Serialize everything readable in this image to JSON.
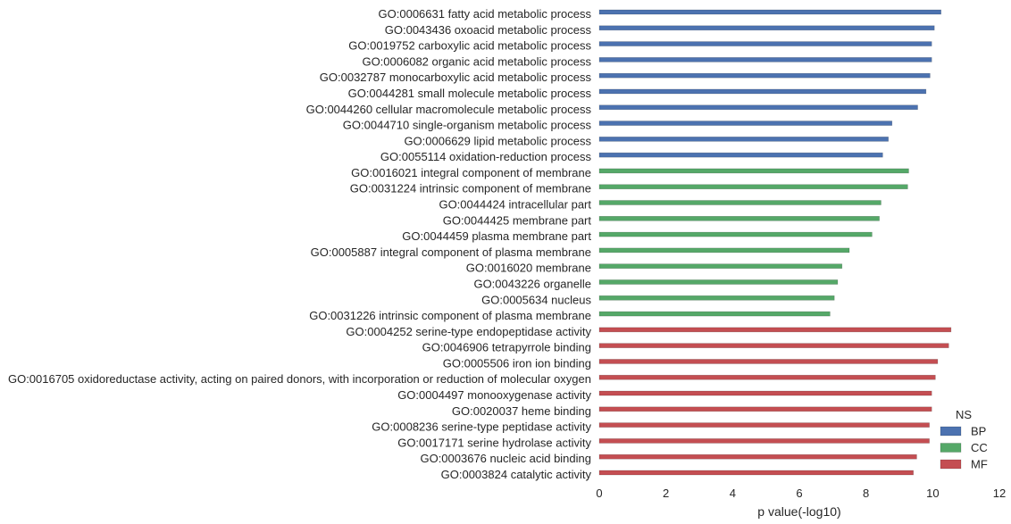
{
  "chart_data": {
    "type": "bar",
    "orientation": "horizontal",
    "title": "",
    "xlabel": "p value(-log10)",
    "ylabel": "",
    "xlim": [
      0,
      12
    ],
    "xticks": [
      "0",
      "2",
      "4",
      "6",
      "8",
      "10",
      "12"
    ],
    "grid": false,
    "legend": {
      "title": "NS",
      "position": "bottom-right",
      "entries": [
        {
          "name": "BP",
          "color": "#4c72b0"
        },
        {
          "name": "CC",
          "color": "#55a868"
        },
        {
          "name": "MF",
          "color": "#c44e52"
        }
      ]
    },
    "categories": [
      {
        "label": "GO:0006631 fatty acid metabolic process",
        "value": 10.25,
        "group": "BP"
      },
      {
        "label": "GO:0043436 oxoacid metabolic process",
        "value": 10.05,
        "group": "BP"
      },
      {
        "label": "GO:0019752 carboxylic acid metabolic process",
        "value": 9.97,
        "group": "BP"
      },
      {
        "label": "GO:0006082 organic acid metabolic process",
        "value": 9.97,
        "group": "BP"
      },
      {
        "label": "GO:0032787 monocarboxylic acid metabolic process",
        "value": 9.92,
        "group": "BP"
      },
      {
        "label": "GO:0044281 small molecule metabolic process",
        "value": 9.8,
        "group": "BP"
      },
      {
        "label": "GO:0044260 cellular macromolecule metabolic process",
        "value": 9.55,
        "group": "BP"
      },
      {
        "label": "GO:0044710 single-organism metabolic process",
        "value": 8.78,
        "group": "BP"
      },
      {
        "label": "GO:0006629 lipid metabolic process",
        "value": 8.67,
        "group": "BP"
      },
      {
        "label": "GO:0055114 oxidation-reduction process",
        "value": 8.5,
        "group": "BP"
      },
      {
        "label": "GO:0016021 integral component of membrane",
        "value": 9.28,
        "group": "CC"
      },
      {
        "label": "GO:0031224 intrinsic component of membrane",
        "value": 9.25,
        "group": "CC"
      },
      {
        "label": "GO:0044424 intracellular part",
        "value": 8.45,
        "group": "CC"
      },
      {
        "label": "GO:0044425 membrane part",
        "value": 8.4,
        "group": "CC"
      },
      {
        "label": "GO:0044459 plasma membrane part",
        "value": 8.18,
        "group": "CC"
      },
      {
        "label": "GO:0005887 integral component of plasma membrane",
        "value": 7.5,
        "group": "CC"
      },
      {
        "label": "GO:0016020 membrane",
        "value": 7.28,
        "group": "CC"
      },
      {
        "label": "GO:0043226 organelle",
        "value": 7.15,
        "group": "CC"
      },
      {
        "label": "GO:0005634 nucleus",
        "value": 7.05,
        "group": "CC"
      },
      {
        "label": "GO:0031226 intrinsic component of plasma membrane",
        "value": 6.92,
        "group": "CC"
      },
      {
        "label": "GO:0004252 serine-type endopeptidase activity",
        "value": 10.55,
        "group": "MF"
      },
      {
        "label": "GO:0046906 tetrapyrrole binding",
        "value": 10.48,
        "group": "MF"
      },
      {
        "label": "GO:0005506 iron ion binding",
        "value": 10.15,
        "group": "MF"
      },
      {
        "label": "GO:0016705 oxidoreductase activity, acting on paired donors, with incorporation or reduction of molecular oxygen",
        "value": 10.08,
        "group": "MF"
      },
      {
        "label": "GO:0004497 monooxygenase activity",
        "value": 9.97,
        "group": "MF"
      },
      {
        "label": "GO:0020037 heme binding",
        "value": 9.97,
        "group": "MF"
      },
      {
        "label": "GO:0008236 serine-type peptidase activity",
        "value": 9.9,
        "group": "MF"
      },
      {
        "label": "GO:0017171 serine hydrolase activity",
        "value": 9.9,
        "group": "MF"
      },
      {
        "label": "GO:0003676 nucleic acid binding",
        "value": 9.52,
        "group": "MF"
      },
      {
        "label": "GO:0003824 catalytic activity",
        "value": 9.42,
        "group": "MF"
      }
    ]
  }
}
